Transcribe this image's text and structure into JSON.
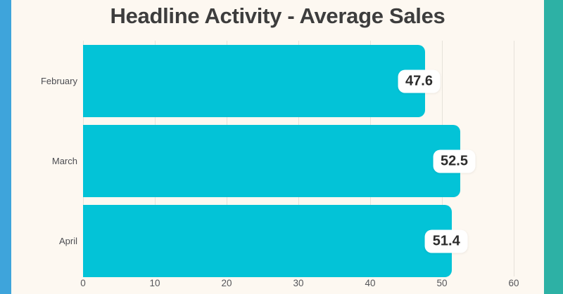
{
  "page": {
    "background_color": "#fdf8f1",
    "left_stripe_color": "#3ea4db",
    "right_stripe_color": "#2db1a5"
  },
  "chart_data": {
    "type": "bar",
    "orientation": "horizontal",
    "title": "Headline Activity - Average Sales",
    "categories": [
      "February",
      "March",
      "April"
    ],
    "values": [
      47.6,
      52.5,
      51.4
    ],
    "value_labels": [
      "47.6",
      "52.5",
      "51.4"
    ],
    "xlabel": "",
    "ylabel": "",
    "xlim": [
      0,
      60
    ],
    "xticks": [
      "0",
      "10",
      "20",
      "30",
      "40",
      "50",
      "60"
    ],
    "grid": "vertical-gridlines-on",
    "legend": "none",
    "colors": {
      "bar": "#03c3d7",
      "gridline": "#e6e2da",
      "title_text": "#3d3d3d",
      "category_label_text": "#4c4d52",
      "tick_label_text": "#55565a",
      "value_badge_bg": "#ffffff",
      "value_badge_text": "#2b2b2b"
    }
  }
}
